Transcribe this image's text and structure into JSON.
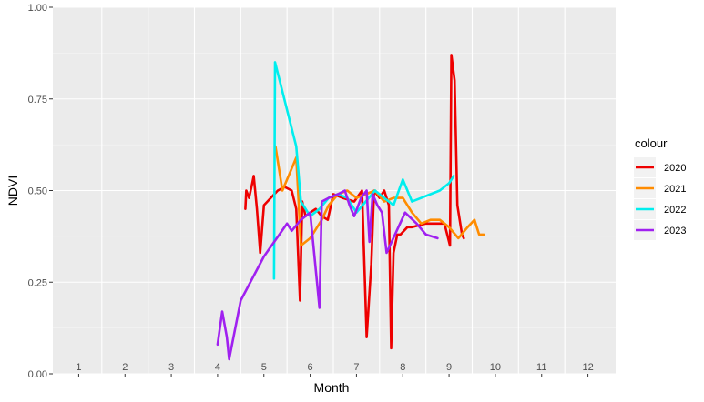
{
  "chart_data": {
    "type": "line",
    "xlabel": "Month",
    "ylabel": "NDVI",
    "ylim": [
      0,
      1
    ],
    "y_ticks": [
      "0.00",
      "0.25",
      "0.50",
      "0.75",
      "1.00"
    ],
    "x_tick_labels": [
      "1",
      "2",
      "3",
      "4",
      "5",
      "6",
      "7",
      "8",
      "9",
      "10",
      "11",
      "12"
    ],
    "grid": true,
    "legend": {
      "title": "colour",
      "position": "right"
    },
    "series": [
      {
        "name": "2020",
        "color": "#ee0000",
        "x": [
          5.1,
          5.12,
          5.18,
          5.25,
          5.28,
          5.35,
          5.42,
          5.5,
          5.8,
          5.95,
          6.1,
          6.2,
          6.28,
          6.33,
          6.4,
          6.5,
          6.62,
          6.75,
          6.88,
          7.0,
          7.2,
          7.45,
          7.62,
          7.72,
          7.82,
          7.88,
          8.0,
          8.1,
          8.2,
          8.25,
          8.3,
          8.38,
          8.45,
          8.6,
          8.7,
          9.0,
          9.4,
          9.52,
          9.55,
          9.62,
          9.68,
          9.78,
          9.82
        ],
        "y": [
          0.45,
          0.5,
          0.48,
          0.52,
          0.54,
          0.45,
          0.33,
          0.46,
          0.5,
          0.51,
          0.5,
          0.45,
          0.2,
          0.47,
          0.43,
          0.44,
          0.45,
          0.43,
          0.42,
          0.49,
          0.48,
          0.47,
          0.5,
          0.1,
          0.3,
          0.5,
          0.48,
          0.5,
          0.46,
          0.07,
          0.33,
          0.38,
          0.38,
          0.4,
          0.4,
          0.41,
          0.41,
          0.35,
          0.87,
          0.8,
          0.46,
          0.38,
          0.37
        ]
      },
      {
        "name": "2021",
        "color": "#ff8c00",
        "x": [
          5.75,
          5.9,
          6.0,
          6.1,
          6.2,
          6.3,
          6.5,
          6.75,
          6.9,
          7.1,
          7.3,
          7.5,
          7.7,
          7.9,
          8.1,
          8.3,
          8.5,
          8.7,
          8.9,
          9.1,
          9.3,
          9.5,
          9.7,
          9.9,
          10.05,
          10.15,
          10.25
        ],
        "y": [
          0.62,
          0.5,
          0.53,
          0.56,
          0.59,
          0.35,
          0.37,
          0.42,
          0.46,
          0.49,
          0.5,
          0.48,
          0.49,
          0.5,
          0.47,
          0.48,
          0.48,
          0.44,
          0.41,
          0.42,
          0.42,
          0.4,
          0.37,
          0.4,
          0.42,
          0.38,
          0.38
        ]
      },
      {
        "name": "2022",
        "color": "#00eeee",
        "x": [
          5.72,
          5.74,
          6.2,
          6.3,
          6.5,
          6.7,
          6.9,
          7.1,
          7.3,
          7.5,
          7.7,
          7.9,
          8.1,
          8.3,
          8.5,
          8.7,
          8.9,
          9.1,
          9.3,
          9.5,
          9.6
        ],
        "y": [
          0.26,
          0.85,
          0.62,
          0.47,
          0.43,
          0.45,
          0.48,
          0.49,
          0.48,
          0.44,
          0.47,
          0.5,
          0.48,
          0.46,
          0.53,
          0.47,
          0.48,
          0.49,
          0.5,
          0.52,
          0.54
        ]
      },
      {
        "name": "2023",
        "color": "#a020f0",
        "x": [
          4.5,
          4.6,
          4.7,
          4.75,
          5.0,
          5.5,
          6.0,
          6.1,
          6.3,
          6.5,
          6.7,
          6.75,
          6.9,
          7.1,
          7.25,
          7.35,
          7.45,
          7.6,
          7.72,
          7.78,
          7.85,
          7.95,
          8.05,
          8.15,
          8.55,
          8.8,
          9.0,
          9.25
        ],
        "y": [
          0.08,
          0.17,
          0.1,
          0.04,
          0.2,
          0.32,
          0.41,
          0.39,
          0.42,
          0.44,
          0.18,
          0.47,
          0.48,
          0.49,
          0.5,
          0.46,
          0.43,
          0.48,
          0.5,
          0.36,
          0.49,
          0.46,
          0.44,
          0.33,
          0.44,
          0.41,
          0.38,
          0.37
        ]
      }
    ]
  }
}
